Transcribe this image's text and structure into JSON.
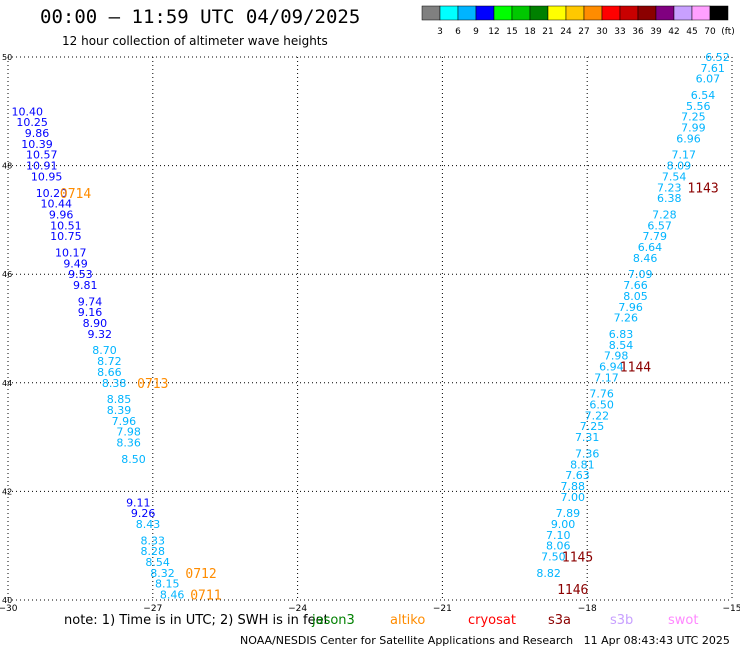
{
  "header": {
    "title": "00:00 — 11:59 UTC 04/09/2025",
    "subtitle": "12 hour collection of altimeter wave heights"
  },
  "colorbar": {
    "ticks": [
      "3",
      "6",
      "9",
      "12",
      "15",
      "18",
      "21",
      "24",
      "27",
      "30",
      "33",
      "36",
      "39",
      "42",
      "45",
      "70",
      "(ft)"
    ],
    "colors": [
      "#808080",
      "#00ffff",
      "#00b4ff",
      "#0000ff",
      "#00ff00",
      "#00c800",
      "#008000",
      "#ffff00",
      "#ffc800",
      "#ff8c00",
      "#ff0000",
      "#c80000",
      "#8b0000",
      "#800080",
      "#c8a0ff",
      "#ffa0ff",
      "#000000"
    ]
  },
  "footer": {
    "note": "note: 1) Time is in UTC; 2) SWH is in feet",
    "legend": [
      {
        "label": "jason3",
        "color": "#008000"
      },
      {
        "label": "altiko",
        "color": "#ff8c00"
      },
      {
        "label": "cryosat",
        "color": "#ff0000"
      },
      {
        "label": "s3a",
        "color": "#8b0000"
      },
      {
        "label": "s3b",
        "color": "#c8a0ff"
      },
      {
        "label": "swot",
        "color": "#ff88ff"
      }
    ],
    "credit": "NOAA/NESDIS Center for Satellite Applications and Research",
    "timestamp": "11 Apr 08:43:43 UTC 2025"
  },
  "chart_data": {
    "type": "scatter",
    "xlim": [
      -30,
      -15
    ],
    "ylim": [
      40,
      50
    ],
    "xticks": [
      "−30",
      "−27",
      "−24",
      "−21",
      "−18",
      "−15"
    ],
    "yticks": [
      "40",
      "42",
      "44",
      "46",
      "48",
      "50"
    ],
    "grid": true,
    "series": [
      {
        "color": "#0000ff",
        "points": [
          {
            "x": -29.6,
            "y": 49.0,
            "v": "10.40"
          },
          {
            "x": -29.5,
            "y": 48.8,
            "v": "10.25"
          },
          {
            "x": -29.4,
            "y": 48.6,
            "v": "9.86"
          },
          {
            "x": -29.4,
            "y": 48.4,
            "v": "10.39"
          },
          {
            "x": -29.3,
            "y": 48.2,
            "v": "10.57"
          },
          {
            "x": -29.3,
            "y": 48.0,
            "v": "10.91"
          },
          {
            "x": -29.2,
            "y": 47.8,
            "v": "10.95"
          },
          {
            "x": -29.1,
            "y": 47.5,
            "v": "10.20"
          },
          {
            "x": -29.0,
            "y": 47.3,
            "v": "10.44"
          },
          {
            "x": -28.9,
            "y": 47.1,
            "v": "9.96"
          },
          {
            "x": -28.8,
            "y": 46.9,
            "v": "10.51"
          },
          {
            "x": -28.8,
            "y": 46.7,
            "v": "10.75"
          },
          {
            "x": -28.7,
            "y": 46.4,
            "v": "10.17"
          },
          {
            "x": -28.6,
            "y": 46.2,
            "v": "9.49"
          },
          {
            "x": -28.5,
            "y": 46.0,
            "v": "9.53"
          },
          {
            "x": -28.4,
            "y": 45.8,
            "v": "9.81"
          },
          {
            "x": -28.3,
            "y": 45.5,
            "v": "9.74"
          },
          {
            "x": -28.3,
            "y": 45.3,
            "v": "9.16"
          },
          {
            "x": -28.2,
            "y": 45.1,
            "v": "8.90"
          },
          {
            "x": -28.1,
            "y": 44.9,
            "v": "9.32"
          },
          {
            "x": -27.3,
            "y": 41.8,
            "v": "9.11"
          },
          {
            "x": -27.2,
            "y": 41.6,
            "v": "9.26"
          }
        ]
      },
      {
        "color": "#00b4ff",
        "points": [
          {
            "x": -28.0,
            "y": 44.6,
            "v": "8.70"
          },
          {
            "x": -27.9,
            "y": 44.4,
            "v": "8.72"
          },
          {
            "x": -27.9,
            "y": 44.2,
            "v": "8.66"
          },
          {
            "x": -27.8,
            "y": 44.0,
            "v": "8.38"
          },
          {
            "x": -27.7,
            "y": 43.7,
            "v": "8.85"
          },
          {
            "x": -27.7,
            "y": 43.5,
            "v": "8.39"
          },
          {
            "x": -27.6,
            "y": 43.3,
            "v": "7.96"
          },
          {
            "x": -27.5,
            "y": 43.1,
            "v": "7.98"
          },
          {
            "x": -27.5,
            "y": 42.9,
            "v": "8.36"
          },
          {
            "x": -27.4,
            "y": 42.6,
            "v": "8.50"
          },
          {
            "x": -27.1,
            "y": 41.4,
            "v": "8.43"
          },
          {
            "x": -27.0,
            "y": 41.1,
            "v": "8.33"
          },
          {
            "x": -27.0,
            "y": 40.9,
            "v": "8.28"
          },
          {
            "x": -26.9,
            "y": 40.7,
            "v": "8.54"
          },
          {
            "x": -26.8,
            "y": 40.5,
            "v": "8.32"
          },
          {
            "x": -26.7,
            "y": 40.3,
            "v": "8.15"
          },
          {
            "x": -26.6,
            "y": 40.1,
            "v": "8.46"
          },
          {
            "x": -15.3,
            "y": 50.0,
            "v": "6.52"
          },
          {
            "x": -15.4,
            "y": 49.8,
            "v": "7.61"
          },
          {
            "x": -15.5,
            "y": 49.6,
            "v": "6.07"
          },
          {
            "x": -15.6,
            "y": 49.3,
            "v": "6.54"
          },
          {
            "x": -15.7,
            "y": 49.1,
            "v": "5.56"
          },
          {
            "x": -15.8,
            "y": 48.9,
            "v": "7.25"
          },
          {
            "x": -15.8,
            "y": 48.7,
            "v": "7.99"
          },
          {
            "x": -15.9,
            "y": 48.5,
            "v": "6.96"
          },
          {
            "x": -16.0,
            "y": 48.2,
            "v": "7.17"
          },
          {
            "x": -16.1,
            "y": 48.0,
            "v": "8.09"
          },
          {
            "x": -16.2,
            "y": 47.8,
            "v": "7.54"
          },
          {
            "x": -16.3,
            "y": 47.6,
            "v": "7.23"
          },
          {
            "x": -16.3,
            "y": 47.4,
            "v": "6.38"
          },
          {
            "x": -16.4,
            "y": 47.1,
            "v": "7.28"
          },
          {
            "x": -16.5,
            "y": 46.9,
            "v": "6.57"
          },
          {
            "x": -16.6,
            "y": 46.7,
            "v": "7.79"
          },
          {
            "x": -16.7,
            "y": 46.5,
            "v": "6.64"
          },
          {
            "x": -16.8,
            "y": 46.3,
            "v": "8.46"
          },
          {
            "x": -16.9,
            "y": 46.0,
            "v": "7.09"
          },
          {
            "x": -17.0,
            "y": 45.8,
            "v": "7.66"
          },
          {
            "x": -17.0,
            "y": 45.6,
            "v": "8.05"
          },
          {
            "x": -17.1,
            "y": 45.4,
            "v": "7.96"
          },
          {
            "x": -17.2,
            "y": 45.2,
            "v": "7.26"
          },
          {
            "x": -17.3,
            "y": 44.9,
            "v": "6.83"
          },
          {
            "x": -17.3,
            "y": 44.7,
            "v": "8.54"
          },
          {
            "x": -17.4,
            "y": 44.5,
            "v": "7.98"
          },
          {
            "x": -17.5,
            "y": 44.3,
            "v": "6.94"
          },
          {
            "x": -17.6,
            "y": 44.1,
            "v": "7.17"
          },
          {
            "x": -17.7,
            "y": 43.8,
            "v": "7.76"
          },
          {
            "x": -17.7,
            "y": 43.6,
            "v": "6.50"
          },
          {
            "x": -17.8,
            "y": 43.4,
            "v": "7.22"
          },
          {
            "x": -17.9,
            "y": 43.2,
            "v": "7.25"
          },
          {
            "x": -18.0,
            "y": 43.0,
            "v": "7.31"
          },
          {
            "x": -18.0,
            "y": 42.7,
            "v": "7.36"
          },
          {
            "x": -18.1,
            "y": 42.5,
            "v": "8.81"
          },
          {
            "x": -18.2,
            "y": 42.3,
            "v": "7.63"
          },
          {
            "x": -18.3,
            "y": 42.1,
            "v": "7.88"
          },
          {
            "x": -18.3,
            "y": 41.9,
            "v": "7.00"
          },
          {
            "x": -18.4,
            "y": 41.6,
            "v": "7.89"
          },
          {
            "x": -18.5,
            "y": 41.4,
            "v": "9.00"
          },
          {
            "x": -18.6,
            "y": 41.2,
            "v": "7.10"
          },
          {
            "x": -18.6,
            "y": 41.0,
            "v": "8.06"
          },
          {
            "x": -18.7,
            "y": 40.8,
            "v": "7.50"
          },
          {
            "x": -18.8,
            "y": 40.5,
            "v": "8.82"
          }
        ]
      }
    ],
    "annotations": [
      {
        "x": -28.6,
        "y": 47.5,
        "text": "0714",
        "color": "#ff8c00"
      },
      {
        "x": -27.0,
        "y": 44.0,
        "text": "0713",
        "color": "#ff8c00"
      },
      {
        "x": -26.0,
        "y": 40.5,
        "text": "0712",
        "color": "#ff8c00"
      },
      {
        "x": -25.9,
        "y": 40.1,
        "text": "0711",
        "color": "#ff8c00"
      },
      {
        "x": -15.6,
        "y": 47.6,
        "text": "1143",
        "color": "#8b0000"
      },
      {
        "x": -17.0,
        "y": 44.3,
        "text": "1144",
        "color": "#8b0000"
      },
      {
        "x": -18.2,
        "y": 40.8,
        "text": "1145",
        "color": "#8b0000"
      },
      {
        "x": -18.3,
        "y": 40.2,
        "text": "1146",
        "color": "#8b0000"
      }
    ]
  }
}
